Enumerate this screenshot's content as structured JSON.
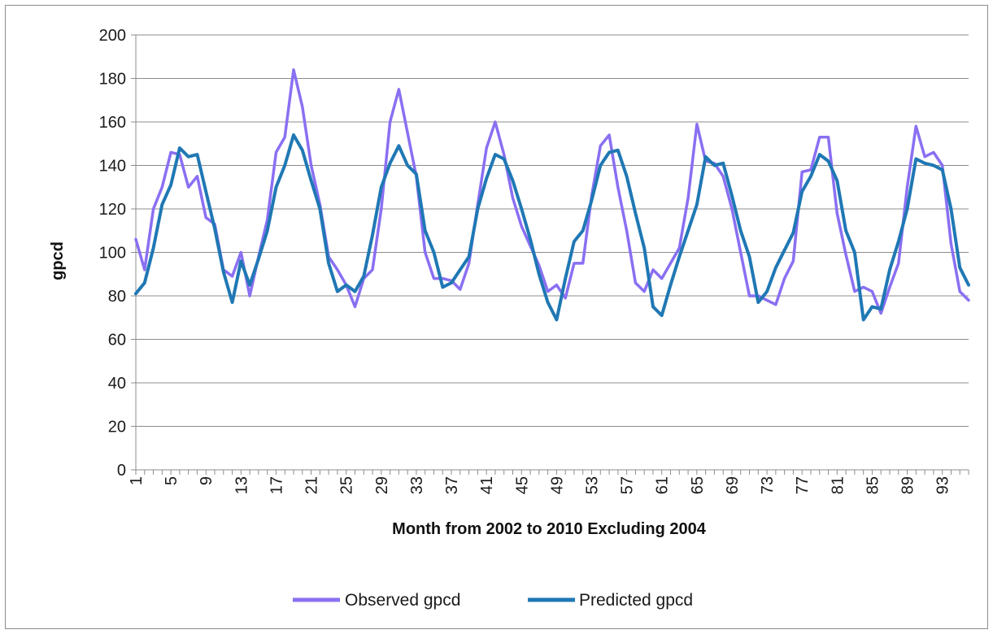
{
  "chart_data": {
    "type": "line",
    "title": "",
    "xlabel": "Month from 2002 to 2010 Excluding 2004",
    "ylabel": "gpcd",
    "ylim": [
      0,
      200
    ],
    "yticks": [
      0,
      20,
      40,
      60,
      80,
      100,
      120,
      140,
      160,
      180,
      200
    ],
    "xlim": [
      1,
      96
    ],
    "xticks": [
      1,
      5,
      9,
      13,
      17,
      21,
      25,
      29,
      33,
      37,
      41,
      45,
      49,
      53,
      57,
      61,
      65,
      69,
      73,
      77,
      81,
      85,
      89,
      93
    ],
    "grid": "horizontal",
    "legend_position": "bottom",
    "x": [
      1,
      2,
      3,
      4,
      5,
      6,
      7,
      8,
      9,
      10,
      11,
      12,
      13,
      14,
      15,
      16,
      17,
      18,
      19,
      20,
      21,
      22,
      23,
      24,
      25,
      26,
      27,
      28,
      29,
      30,
      31,
      32,
      33,
      34,
      35,
      36,
      37,
      38,
      39,
      40,
      41,
      42,
      43,
      44,
      45,
      46,
      47,
      48,
      49,
      50,
      51,
      52,
      53,
      54,
      55,
      56,
      57,
      58,
      59,
      60,
      61,
      62,
      63,
      64,
      65,
      66,
      67,
      68,
      69,
      70,
      71,
      72,
      73,
      74,
      75,
      76,
      77,
      78,
      79,
      80,
      81,
      82,
      83,
      84,
      85,
      86,
      87,
      88,
      89,
      90,
      91,
      92,
      93,
      94,
      95,
      96
    ],
    "series": [
      {
        "name": "Observed gpcd",
        "color": "#8a6ff2",
        "values": [
          106,
          92,
          120,
          130,
          146,
          145,
          130,
          135,
          116,
          113,
          92,
          89,
          100,
          80,
          98,
          115,
          146,
          153,
          184,
          167,
          140,
          122,
          98,
          92,
          85,
          75,
          88,
          92,
          120,
          160,
          175,
          155,
          135,
          100,
          88,
          88,
          87,
          83,
          95,
          122,
          148,
          160,
          145,
          125,
          112,
          103,
          94,
          82,
          85,
          79,
          95,
          95,
          126,
          149,
          154,
          130,
          110,
          86,
          82,
          92,
          88,
          95,
          102,
          125,
          159,
          142,
          141,
          135,
          120,
          100,
          80,
          80,
          78,
          76,
          88,
          96,
          137,
          138,
          153,
          153,
          118,
          99,
          82,
          84,
          82,
          72,
          84,
          95,
          130,
          158,
          144,
          146,
          140,
          104,
          82,
          78
        ]
      },
      {
        "name": "Predicted gpcd",
        "color": "#1f78b4",
        "values": [
          81,
          86,
          102,
          122,
          131,
          148,
          144,
          145,
          128,
          111,
          91,
          77,
          96,
          85,
          97,
          110,
          130,
          140,
          154,
          147,
          133,
          120,
          95,
          82,
          85,
          82,
          89,
          108,
          130,
          141,
          149,
          140,
          136,
          110,
          100,
          84,
          86,
          92,
          98,
          120,
          134,
          145,
          143,
          133,
          120,
          106,
          90,
          77,
          69,
          88,
          105,
          110,
          124,
          140,
          146,
          147,
          135,
          118,
          102,
          75,
          71,
          85,
          98,
          110,
          122,
          144,
          140,
          141,
          126,
          110,
          98,
          77,
          82,
          93,
          101,
          109,
          128,
          135,
          145,
          142,
          133,
          110,
          100,
          69,
          75,
          74,
          92,
          105,
          120,
          143,
          141,
          140,
          138,
          120,
          93,
          85
        ]
      }
    ]
  }
}
